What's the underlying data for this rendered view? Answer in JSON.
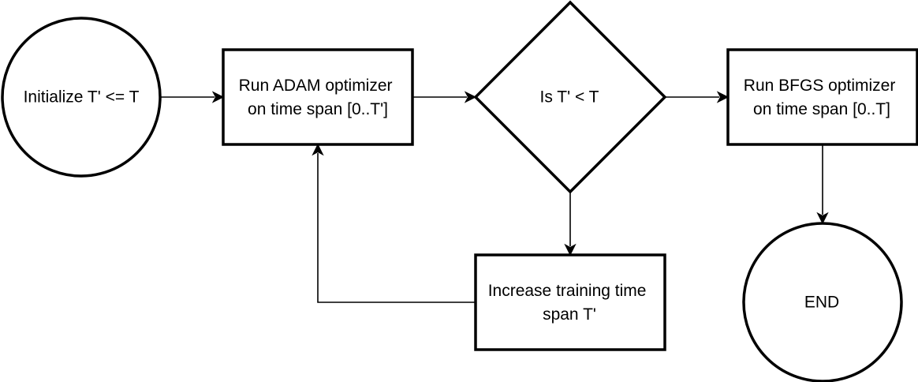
{
  "nodes": {
    "start": {
      "lines": [
        "Initialize T' <= T"
      ]
    },
    "adam": {
      "lines": [
        "Run ADAM optimizer",
        "on time span [0..T']"
      ]
    },
    "decision": {
      "lines": [
        "Is T' < T"
      ]
    },
    "bfgs": {
      "lines": [
        "Run BFGS optimizer",
        "on time span [0..T]"
      ]
    },
    "increase": {
      "lines": [
        "Increase training time",
        "span T'"
      ]
    },
    "end": {
      "lines": [
        "END"
      ]
    }
  },
  "edges": [
    {
      "from": "start",
      "to": "adam"
    },
    {
      "from": "adam",
      "to": "decision"
    },
    {
      "from": "decision",
      "to": "bfgs"
    },
    {
      "from": "decision",
      "to": "increase"
    },
    {
      "from": "bfgs",
      "to": "end"
    },
    {
      "from": "increase",
      "to": "adam"
    }
  ]
}
